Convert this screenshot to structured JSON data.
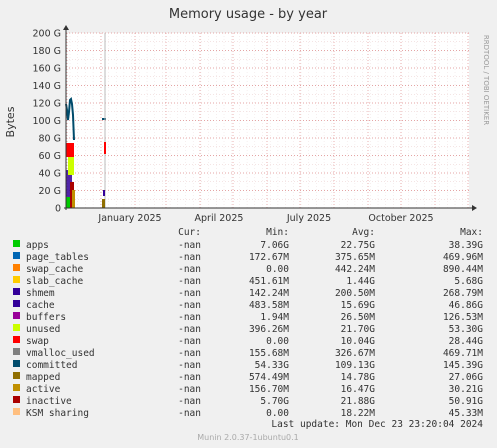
{
  "chart_data": {
    "type": "area",
    "title": "Memory usage - by year",
    "ylabel": "Bytes",
    "side_label": "RRDTOOL / TOBI OETIKER",
    "footer": "Munin 2.0.37-1ubuntu0.1",
    "last_update": "Last update: Mon Dec 23 23:20:04 2024",
    "ylim": [
      0,
      200
    ],
    "y_unit": "G",
    "y_ticks": [
      "0",
      "20 G",
      "40 G",
      "60 G",
      "80 G",
      "100 G",
      "120 G",
      "140 G",
      "160 G",
      "180 G",
      "200 G"
    ],
    "x_ticks": [
      "January 2025",
      "April 2025",
      "July 2025",
      "October 2025"
    ],
    "grid": true,
    "legend_columns": [
      "Cur:",
      "Min:",
      "Avg:",
      "Max:"
    ],
    "series": [
      {
        "name": "apps",
        "color": "#00cc00",
        "cur": "-nan",
        "min": "7.06G",
        "avg": "22.75G",
        "max": "38.39G"
      },
      {
        "name": "page_tables",
        "color": "#0066b3",
        "cur": "-nan",
        "min": "172.67M",
        "avg": "375.65M",
        "max": "469.96M"
      },
      {
        "name": "swap_cache",
        "color": "#ff8000",
        "cur": "-nan",
        "min": "0.00",
        "avg": "442.24M",
        "max": "890.44M"
      },
      {
        "name": "slab_cache",
        "color": "#ffcc00",
        "cur": "-nan",
        "min": "451.61M",
        "avg": "1.44G",
        "max": "5.68G"
      },
      {
        "name": "shmem",
        "color": "#330099",
        "cur": "-nan",
        "min": "142.24M",
        "avg": "200.50M",
        "max": "268.79M"
      },
      {
        "name": "cache",
        "color": "#330099",
        "cur": "-nan",
        "min": "483.58M",
        "avg": "15.69G",
        "max": "46.86G"
      },
      {
        "name": "buffers",
        "color": "#990099",
        "cur": "-nan",
        "min": "1.94M",
        "avg": "26.50M",
        "max": "126.53M"
      },
      {
        "name": "unused",
        "color": "#ccff00",
        "cur": "-nan",
        "min": "396.26M",
        "avg": "21.70G",
        "max": "53.30G"
      },
      {
        "name": "swap",
        "color": "#ff0000",
        "cur": "-nan",
        "min": "0.00",
        "avg": "10.04G",
        "max": "28.44G"
      },
      {
        "name": "vmalloc_used",
        "color": "#808080",
        "cur": "-nan",
        "min": "155.68M",
        "avg": "326.67M",
        "max": "469.71M"
      },
      {
        "name": "committed",
        "color": "#004b6b",
        "cur": "-nan",
        "min": "54.33G",
        "avg": "109.13G",
        "max": "145.39G"
      },
      {
        "name": "mapped",
        "color": "#8f6e00",
        "cur": "-nan",
        "min": "574.49M",
        "avg": "14.78G",
        "max": "27.06G"
      },
      {
        "name": "active",
        "color": "#c09000",
        "cur": "-nan",
        "min": "156.70M",
        "avg": "16.47G",
        "max": "30.21G"
      },
      {
        "name": "inactive",
        "color": "#aa0000",
        "cur": "-nan",
        "min": "5.70G",
        "avg": "21.88G",
        "max": "50.91G"
      },
      {
        "name": "KSM sharing",
        "color": "#ffbf80",
        "cur": "-nan",
        "min": "0.00",
        "avg": "18.22M",
        "max": "45.33M"
      }
    ]
  }
}
